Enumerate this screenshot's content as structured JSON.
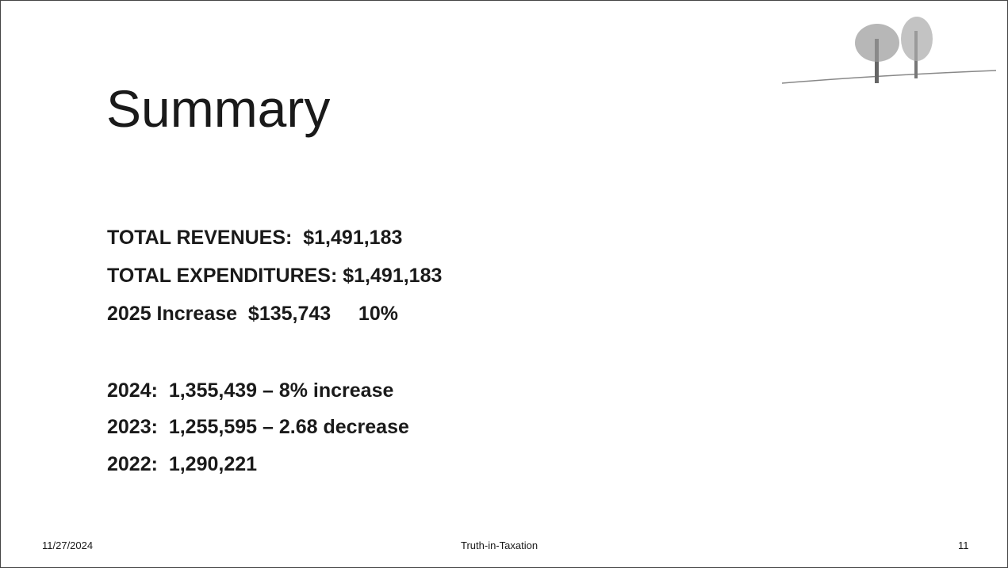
{
  "slide": {
    "title": "Summary",
    "lines": [
      "TOTAL REVENUES:  $1,491,183",
      "TOTAL EXPENDITURES: $1,491,183",
      "2025 Increase  $135,743     10%"
    ],
    "history": [
      "2024:  1,355,439 – 8% increase",
      "2023:  1,255,595 – 2.68 decrease",
      "2022:  1,290,221"
    ],
    "footer": {
      "date": "11/27/2024",
      "center": "Truth-in-Taxation",
      "page": "11"
    }
  }
}
